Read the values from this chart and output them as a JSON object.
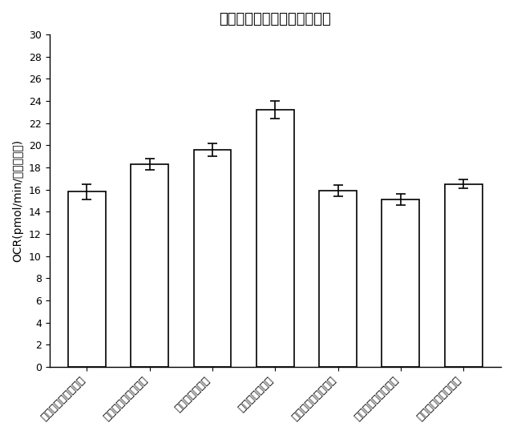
{
  "title": "ミトコンドリアでの基礎呼吸",
  "ylabel": "OCR(pmol/min/タンパク質)",
  "categories": [
    "第１の比較実施形態",
    "第２の比較実施形態",
    "第２の実施形態",
    "第１の実施形態",
    "第３の比較実施形態",
    "第４の比較実施形態",
    "第５の比較実施形態"
  ],
  "values": [
    15.8,
    18.3,
    19.6,
    23.2,
    15.9,
    15.1,
    16.5
  ],
  "errors": [
    0.7,
    0.5,
    0.6,
    0.8,
    0.5,
    0.5,
    0.4
  ],
  "ylim": [
    0,
    30
  ],
  "yticks": [
    0,
    2,
    4,
    6,
    8,
    10,
    12,
    14,
    16,
    18,
    20,
    22,
    24,
    26,
    28,
    30
  ],
  "bar_color": "#ffffff",
  "bar_edgecolor": "#000000",
  "background_color": "#ffffff",
  "title_fontsize": 13,
  "ylabel_fontsize": 10,
  "tick_fontsize": 9,
  "xtick_fontsize": 9.5
}
